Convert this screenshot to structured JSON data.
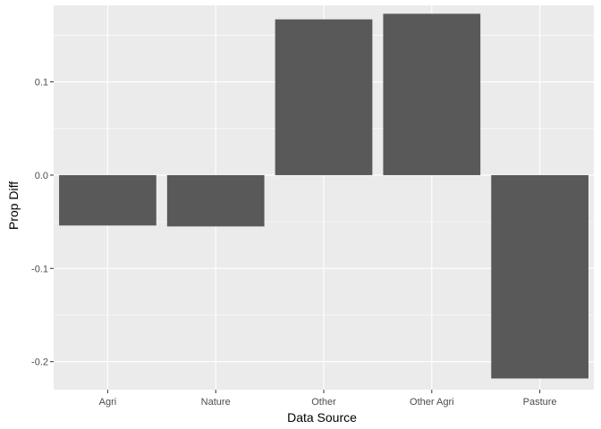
{
  "chart_data": {
    "type": "bar",
    "title": "",
    "xlabel": "Data Source",
    "ylabel": "Prop Diff",
    "categories": [
      "Agri",
      "Nature",
      "Other",
      "Other Agri",
      "Pasture"
    ],
    "values": [
      -0.054,
      -0.055,
      0.167,
      0.173,
      -0.218
    ],
    "ylim": [
      -0.23,
      0.182
    ],
    "yticks": [
      0.1,
      0.0,
      -0.1,
      -0.2
    ],
    "ytick_labels": [
      "0.1",
      "0.0",
      "-0.1",
      "-0.2"
    ],
    "grid": true,
    "legend": "none",
    "colors": {
      "bar": "#595959",
      "panel": "#ebebeb",
      "grid": "#ffffff"
    }
  }
}
